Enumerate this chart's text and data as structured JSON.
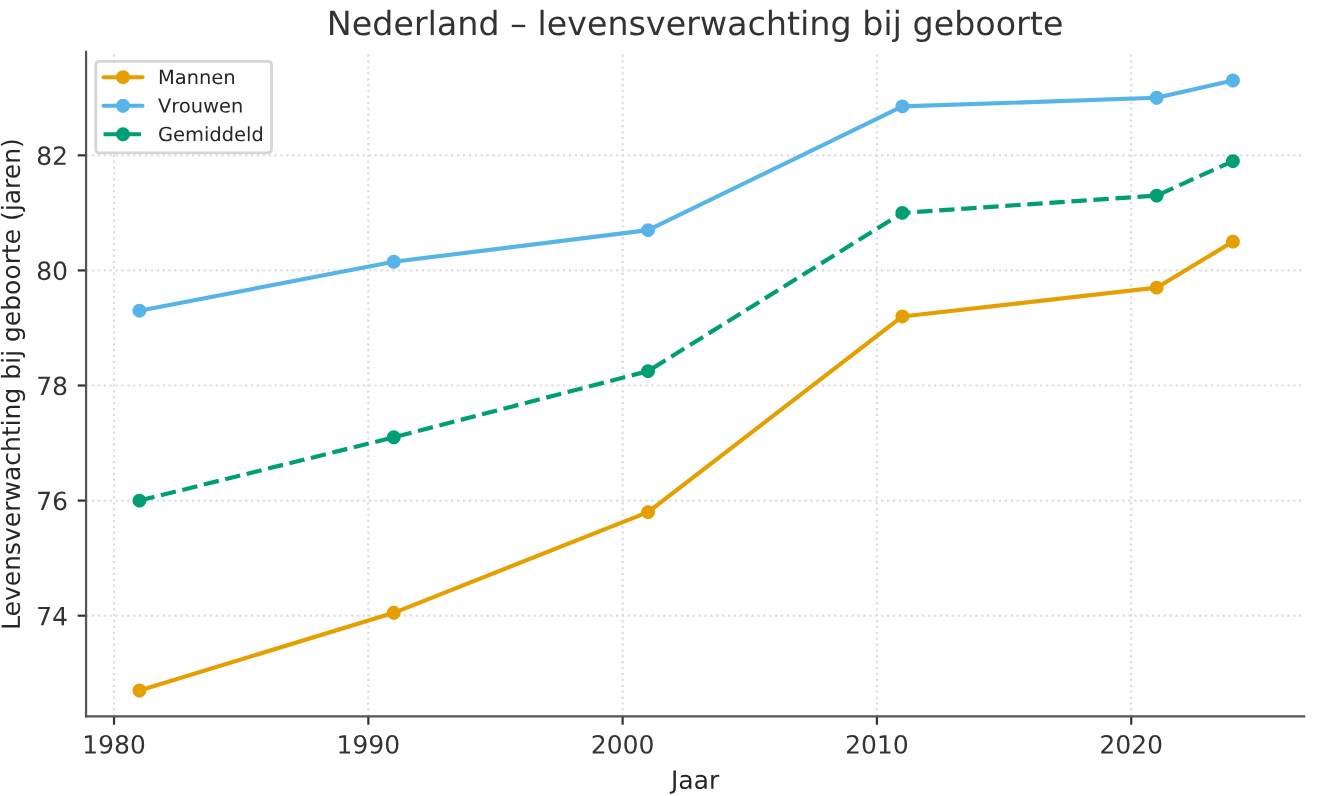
{
  "chart_data": {
    "type": "line",
    "title": "Nederland – levensverwachting bij geboorte",
    "xlabel": "Jaar",
    "ylabel": "Levensverwachting bij geboorte (jaren)",
    "x": [
      1981,
      1991,
      2001,
      2011,
      2021,
      2024
    ],
    "series": [
      {
        "name": "Mannen",
        "color": "#e69f00",
        "values": [
          72.7,
          74.05,
          75.8,
          79.2,
          79.7,
          80.5
        ],
        "line_style": "solid"
      },
      {
        "name": "Vrouwen",
        "color": "#56b4e9",
        "values": [
          79.3,
          80.15,
          80.7,
          82.85,
          83.0,
          83.3
        ],
        "line_style": "solid"
      },
      {
        "name": "Gemiddeld",
        "color": "#009e73",
        "values": [
          76.0,
          77.1,
          78.25,
          81.0,
          81.3,
          81.9
        ],
        "line_style": "dashed"
      }
    ],
    "xlim": [
      1978.9,
      2026.8
    ],
    "ylim": [
      72.25,
      83.8
    ],
    "xticks": [
      1980,
      1990,
      2000,
      2010,
      2020
    ],
    "yticks": [
      74,
      76,
      78,
      80,
      82
    ],
    "grid": true,
    "legend": "top left",
    "marker": "circle"
  }
}
